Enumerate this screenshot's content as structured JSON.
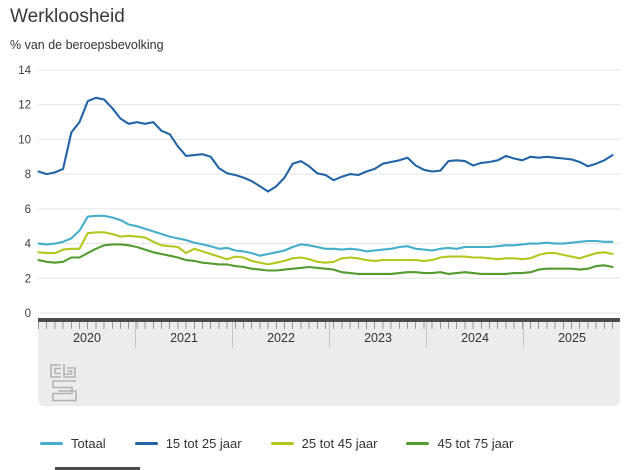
{
  "header": {
    "title": "Werkloosheid",
    "subtitle": "% van de beroepsbevolking"
  },
  "chart_data": {
    "type": "line",
    "title": "Werkloosheid",
    "ylabel": "% van de beroepsbevolking",
    "xlabel": "",
    "x_start": "2020-01",
    "x_end": "2025-11",
    "frequency": "monthly",
    "ylim": [
      0,
      14
    ],
    "yticks": [
      0,
      2,
      4,
      6,
      8,
      10,
      12,
      14
    ],
    "grid": true,
    "legend_position": "bottom",
    "year_labels": [
      "2020",
      "2021",
      "2022",
      "2023",
      "2024",
      "2025"
    ],
    "series": [
      {
        "name": "Totaal",
        "color": "#45aecb",
        "values": [
          4.0,
          3.95,
          4.0,
          4.1,
          4.3,
          4.75,
          5.55,
          5.6,
          5.6,
          5.5,
          5.35,
          5.1,
          5.0,
          4.85,
          4.7,
          4.55,
          4.4,
          4.3,
          4.2,
          4.05,
          3.95,
          3.85,
          3.7,
          3.75,
          3.6,
          3.55,
          3.45,
          3.3,
          3.4,
          3.5,
          3.6,
          3.8,
          3.95,
          3.9,
          3.8,
          3.7,
          3.7,
          3.65,
          3.7,
          3.65,
          3.55,
          3.6,
          3.65,
          3.7,
          3.8,
          3.85,
          3.7,
          3.65,
          3.6,
          3.7,
          3.75,
          3.7,
          3.8,
          3.8,
          3.8,
          3.8,
          3.85,
          3.9,
          3.9,
          3.95,
          4.0,
          4.0,
          4.05,
          4.0,
          4.0,
          4.05,
          4.1,
          4.15,
          4.15,
          4.1,
          4.1
        ]
      },
      {
        "name": "15 tot 25 jaar",
        "color": "#2264a5",
        "values": [
          8.15,
          8.0,
          8.1,
          8.3,
          10.4,
          11.0,
          12.2,
          12.4,
          12.3,
          11.8,
          11.2,
          10.9,
          11.0,
          10.9,
          11.0,
          10.5,
          10.3,
          9.6,
          9.05,
          9.1,
          9.15,
          9.0,
          8.35,
          8.05,
          7.95,
          7.8,
          7.6,
          7.3,
          7.0,
          7.3,
          7.8,
          8.6,
          8.75,
          8.45,
          8.05,
          7.95,
          7.65,
          7.85,
          8.0,
          7.95,
          8.15,
          8.3,
          8.6,
          8.7,
          8.8,
          8.95,
          8.5,
          8.25,
          8.15,
          8.2,
          8.75,
          8.8,
          8.75,
          8.5,
          8.65,
          8.7,
          8.8,
          9.05,
          8.9,
          8.8,
          9.0,
          8.95,
          9.0,
          8.95,
          8.9,
          8.85,
          8.7,
          8.45,
          8.6,
          8.8,
          9.1
        ]
      },
      {
        "name": "25 tot 45 jaar",
        "color": "#b3c71f",
        "values": [
          3.5,
          3.45,
          3.45,
          3.65,
          3.7,
          3.7,
          4.6,
          4.65,
          4.65,
          4.55,
          4.4,
          4.45,
          4.4,
          4.35,
          4.1,
          3.9,
          3.85,
          3.8,
          3.45,
          3.7,
          3.55,
          3.4,
          3.25,
          3.1,
          3.25,
          3.2,
          3.0,
          2.9,
          2.8,
          2.9,
          3.0,
          3.15,
          3.2,
          3.1,
          2.95,
          2.9,
          2.95,
          3.15,
          3.2,
          3.15,
          3.05,
          3.0,
          3.05,
          3.05,
          3.05,
          3.05,
          3.05,
          3.0,
          3.05,
          3.2,
          3.25,
          3.25,
          3.25,
          3.2,
          3.2,
          3.15,
          3.1,
          3.15,
          3.15,
          3.1,
          3.15,
          3.35,
          3.45,
          3.45,
          3.35,
          3.25,
          3.15,
          3.3,
          3.45,
          3.5,
          3.4
        ]
      },
      {
        "name": "45 tot 75 jaar",
        "color": "#549b30",
        "values": [
          3.05,
          2.95,
          2.9,
          2.95,
          3.2,
          3.2,
          3.45,
          3.7,
          3.9,
          3.95,
          3.95,
          3.9,
          3.8,
          3.65,
          3.5,
          3.4,
          3.3,
          3.2,
          3.05,
          3.0,
          2.9,
          2.85,
          2.8,
          2.8,
          2.7,
          2.65,
          2.55,
          2.5,
          2.45,
          2.45,
          2.5,
          2.55,
          2.6,
          2.65,
          2.6,
          2.55,
          2.5,
          2.35,
          2.3,
          2.25,
          2.25,
          2.25,
          2.25,
          2.25,
          2.3,
          2.35,
          2.35,
          2.3,
          2.3,
          2.35,
          2.25,
          2.3,
          2.35,
          2.3,
          2.25,
          2.25,
          2.25,
          2.25,
          2.3,
          2.3,
          2.35,
          2.5,
          2.55,
          2.55,
          2.55,
          2.55,
          2.5,
          2.55,
          2.7,
          2.75,
          2.65
        ]
      }
    ]
  },
  "legend": {
    "items": [
      "Totaal",
      "15 tot 25 jaar",
      "25 tot 45 jaar",
      "45 tot 75 jaar"
    ]
  },
  "logo": {
    "text": "cbs"
  },
  "colors": {
    "grid": "#e4e4e4",
    "navigator_track": "#ececec",
    "navigator_bar": "#4d4d4d",
    "axis_text": "#3d3d3d"
  }
}
